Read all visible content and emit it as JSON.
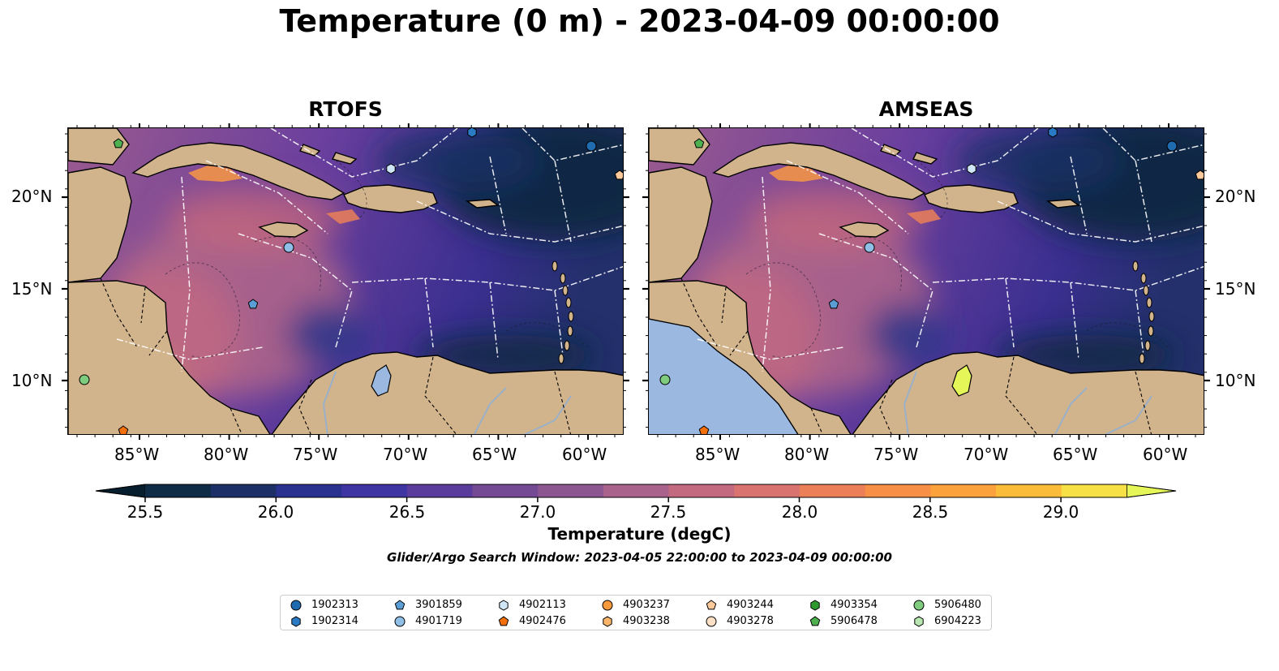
{
  "title": "Temperature (0 m) - 2023-04-09 00:00:00",
  "panels": [
    {
      "title": "RTOFS",
      "variant": "rtofs"
    },
    {
      "title": "AMSEAS",
      "variant": "amseas"
    }
  ],
  "lon_ticks": [
    "85°W",
    "80°W",
    "75°W",
    "70°W",
    "65°W",
    "60°W"
  ],
  "lat_ticks": [
    "20°N",
    "15°N",
    "10°N"
  ],
  "colorbar": {
    "label": "Temperature (degC)",
    "tick_labels": [
      "25.5",
      "26.0",
      "26.5",
      "27.0",
      "27.5",
      "28.0",
      "28.5",
      "29.0"
    ],
    "colors": [
      "#0f2c47",
      "#1c2f66",
      "#2a3290",
      "#3e35a3",
      "#5a3c9c",
      "#744a95",
      "#8c5791",
      "#a9628b",
      "#c46a80",
      "#d8736f",
      "#ea7f58",
      "#f78f46",
      "#fba23c",
      "#fbbd39",
      "#f6e046"
    ],
    "under_color": "#071e2e",
    "over_color": "#e5f659"
  },
  "search_window": "Glider/Argo Search Window: 2023-04-05 22:00:00 to 2023-04-09 00:00:00",
  "legend": [
    {
      "id": "1902313",
      "marker": "circle",
      "color": "#1f6bb0"
    },
    {
      "id": "1902314",
      "marker": "hexagon",
      "color": "#2b7bc4"
    },
    {
      "id": "3901859",
      "marker": "pentagon",
      "color": "#5b9ed6"
    },
    {
      "id": "4901719",
      "marker": "circle",
      "color": "#8fbfe6"
    },
    {
      "id": "4902113",
      "marker": "hexagon",
      "color": "#cfe6f7"
    },
    {
      "id": "4902476",
      "marker": "pentagon",
      "color": "#f26f0c"
    },
    {
      "id": "4903237",
      "marker": "circle",
      "color": "#f79a3c"
    },
    {
      "id": "4903238",
      "marker": "hexagon",
      "color": "#fbb56a"
    },
    {
      "id": "4903244",
      "marker": "pentagon",
      "color": "#fcc99a"
    },
    {
      "id": "4903278",
      "marker": "circle",
      "color": "#fde0c5"
    },
    {
      "id": "4903354",
      "marker": "hexagon",
      "color": "#2e9a2e"
    },
    {
      "id": "5906478",
      "marker": "pentagon",
      "color": "#4fb04f"
    },
    {
      "id": "5906480",
      "marker": "circle",
      "color": "#7fcc7f"
    },
    {
      "id": "6904223",
      "marker": "hexagon",
      "color": "#b8e6b0"
    }
  ]
}
